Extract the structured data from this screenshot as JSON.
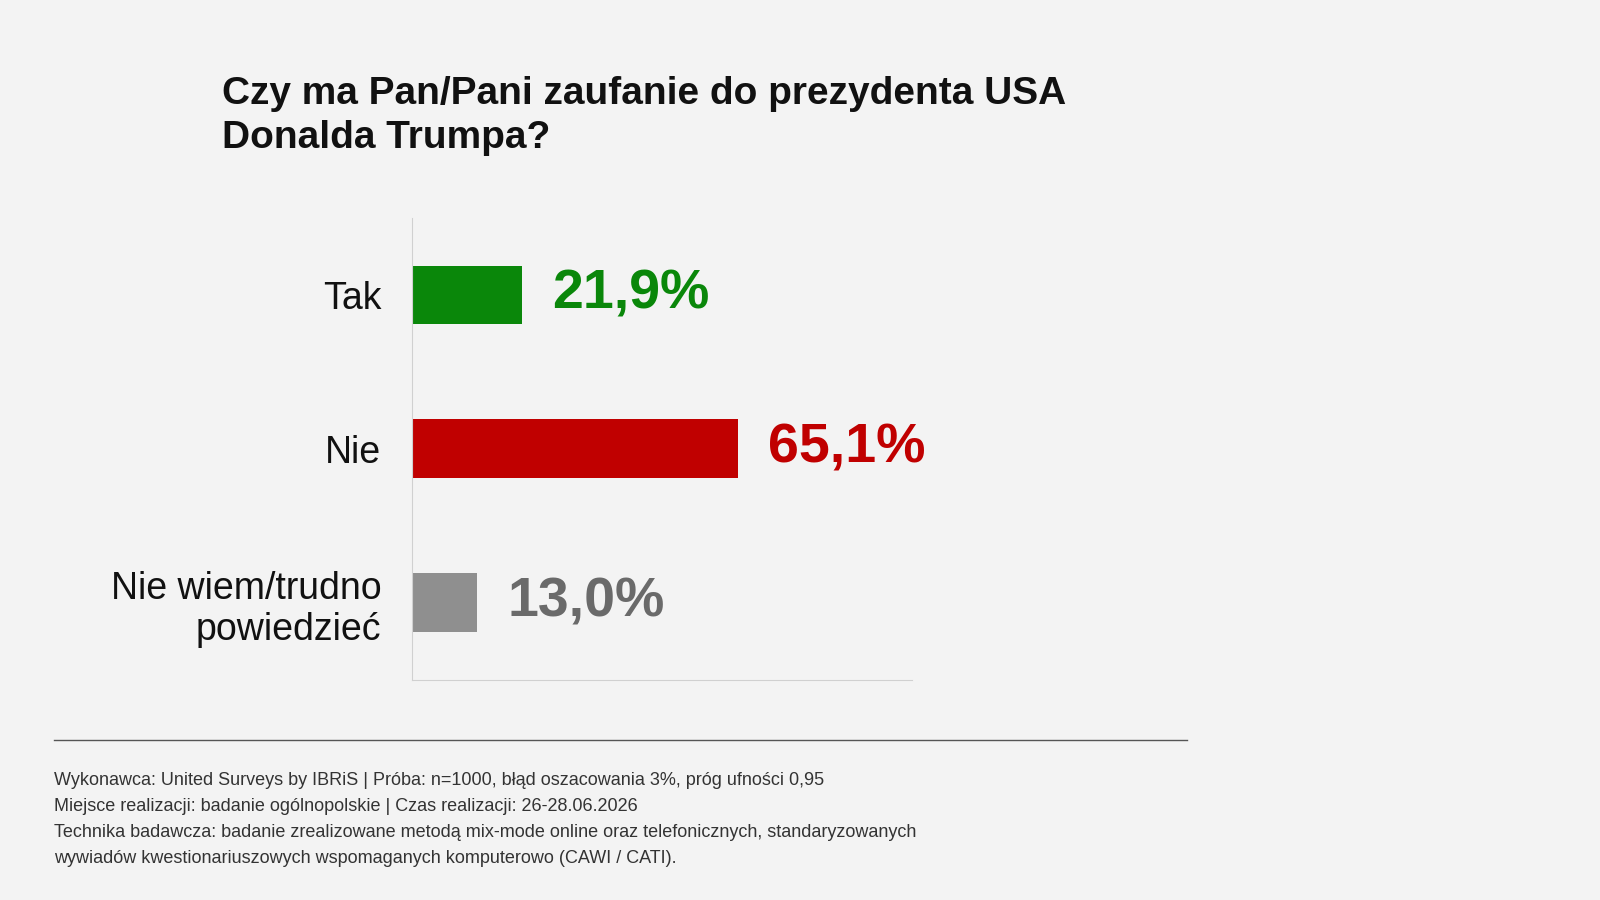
{
  "chart_data": {
    "type": "bar",
    "orientation": "horizontal",
    "title": "Czy ma Pan/Pani zaufanie do prezydenta USA Donalda Trumpa?",
    "categories": [
      "Tak",
      "Nie",
      "Nie wiem/trudno powiedzieć"
    ],
    "values": [
      21.9,
      65.1,
      13.0
    ],
    "value_labels": [
      "21,9%",
      "65,1%",
      "13,0%"
    ],
    "colors": [
      "#0a870a",
      "#c00000",
      "#8f8f8f"
    ],
    "data_labels": true,
    "tick_labels": "y",
    "grid": false,
    "xlim": [
      0,
      100
    ],
    "xticks": [],
    "footer": [
      "Wykonawca: United Surveys by IBRiS | Próba: n=1000, błąd oszacowania 3%, próg ufności 0,95",
      "Miejsce realizacji: badanie ogólnopolskie | Czas realizacji: 26-28.06.2026",
      "Technika badawcza: badanie zrealizowane metodą mix-mode online oraz telefonicznych, standaryzowanych",
      "wywiadów kwestionariuszowych wspomaganych komputerowo (CAWI / CATI)."
    ]
  }
}
